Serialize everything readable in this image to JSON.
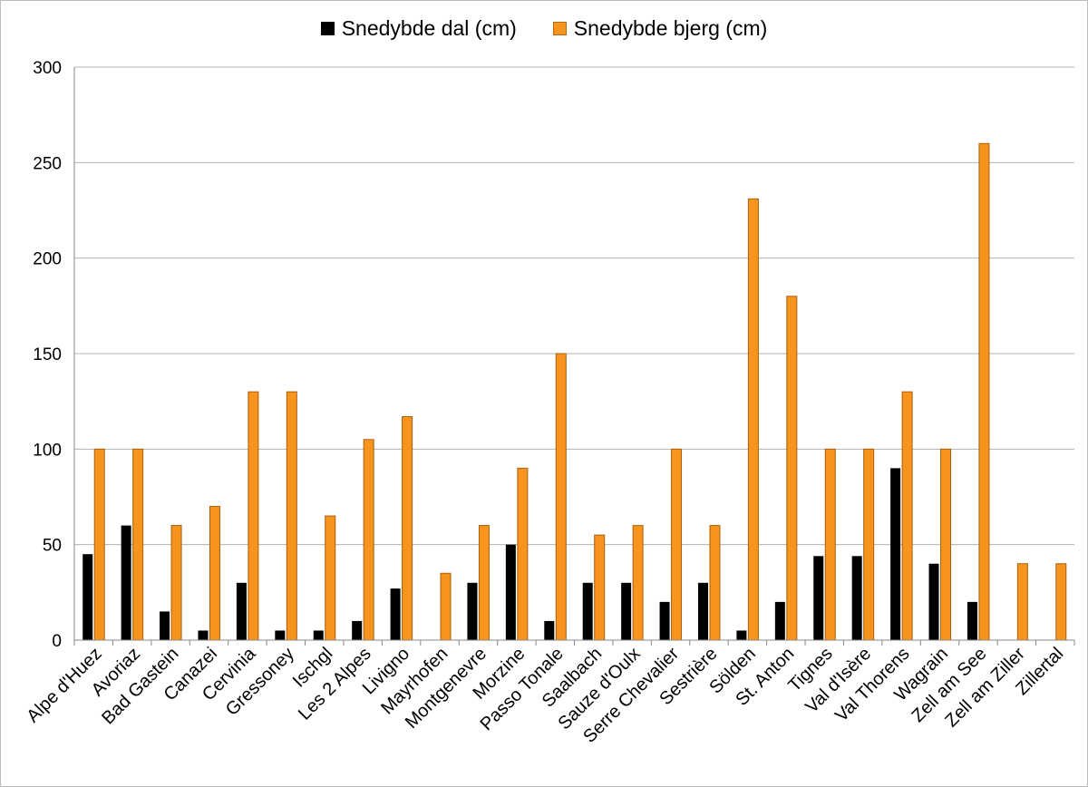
{
  "chart_data": {
    "type": "bar",
    "title": "",
    "xlabel": "",
    "ylabel": "",
    "ylim": [
      0,
      300
    ],
    "yticks": [
      0,
      50,
      100,
      150,
      200,
      250,
      300
    ],
    "grid": true,
    "legend_position": "top",
    "categories": [
      "Alpe d'Huez",
      "Avoriaz",
      "Bad Gastein",
      "Canazei",
      "Cervinia",
      "Gressoney",
      "Ischgl",
      "Les 2 Alpes",
      "Livigno",
      "Mayrhofen",
      "Montgenevre",
      "Morzine",
      "Passo Tonale",
      "Saalbach",
      "Sauze d'Oulx",
      "Serre Chevalier",
      "Sestrière",
      "Sölden",
      "St. Anton",
      "Tignes",
      "Val d'Isère",
      "Val Thorens",
      "Wagrain",
      "Zell am See",
      "Zell am Ziller",
      "Zillertal"
    ],
    "series": [
      {
        "name": "Snedybde dal (cm)",
        "color": "#000000",
        "values": [
          45,
          60,
          15,
          5,
          30,
          5,
          5,
          10,
          27,
          0,
          30,
          50,
          10,
          30,
          30,
          20,
          30,
          5,
          20,
          44,
          44,
          90,
          40,
          20,
          0,
          0
        ]
      },
      {
        "name": "Snedybde bjerg (cm)",
        "color": "#f7941d",
        "values": [
          100,
          100,
          60,
          70,
          130,
          130,
          65,
          105,
          117,
          35,
          60,
          90,
          150,
          55,
          60,
          100,
          60,
          231,
          180,
          100,
          100,
          130,
          100,
          260,
          40,
          40
        ]
      }
    ]
  }
}
